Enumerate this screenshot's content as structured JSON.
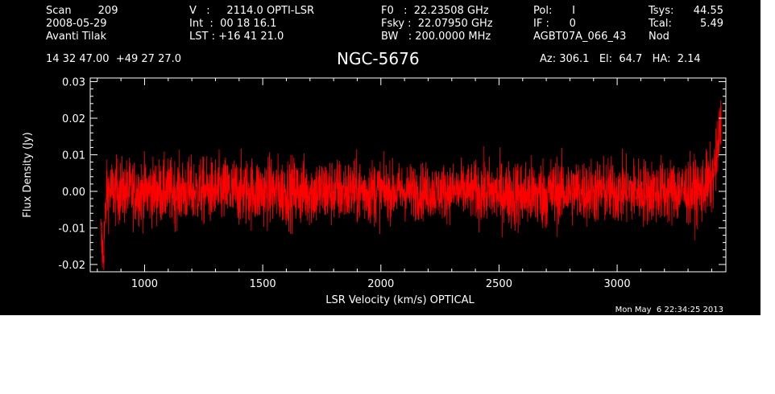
{
  "header": {
    "col1": [
      "Scan        209",
      "2008-05-29",
      "Avanti Tilak"
    ],
    "col2": [
      "V   :     2114.0 OPTI-LSR",
      "Int  :  00 18 16.1",
      "LST : +16 41 21.0"
    ],
    "col3": [
      "F0   :  22.23508 GHz",
      "Fsky :  22.07950 GHz",
      "BW   : 200.0000 MHz"
    ],
    "col4": [
      "Pol:      I",
      "IF :      0",
      "AGBT07A_066_43"
    ],
    "col5": [
      "Tsys:",
      "Tcal:",
      "Nod"
    ],
    "col6": [
      "44.55",
      "5.49",
      ""
    ],
    "coords": "14 32 47.00  +49 27 27.0",
    "object": "NGC-5676",
    "pointing": "Az: 306.1   El:  64.7   HA:  2.14",
    "timestamp": "Mon May  6 22:34:25 2013"
  },
  "colors": {
    "background": "#000000",
    "axes": "#ffffff",
    "trace": "#ff0000"
  },
  "chart_data": {
    "type": "line",
    "title": "NGC-5676",
    "xlabel": "LSR Velocity (km/s) OPTICAL",
    "ylabel": "Flux Density (Jy)",
    "xlim": [
      770,
      3460
    ],
    "ylim": [
      -0.022,
      0.031
    ],
    "xticks": [
      1000,
      1500,
      2000,
      2500,
      3000
    ],
    "xtick_labels": [
      "1000",
      "1500",
      "2000",
      "2500",
      "3000"
    ],
    "yticks": [
      -0.02,
      -0.01,
      0.0,
      0.01,
      0.02,
      0.03
    ],
    "ytick_labels": [
      "-0.02",
      "-0.01",
      "0.00",
      "0.01",
      "0.02",
      "0.03"
    ],
    "grid": false,
    "series": [
      {
        "color": "#ff0000",
        "noise_rms": 0.0045,
        "x": [
          815,
          825,
          840,
          900,
          1000,
          1200,
          1400,
          1600,
          1800,
          2000,
          2200,
          2400,
          2600,
          2800,
          3000,
          3200,
          3350,
          3400,
          3420,
          3430,
          3440
        ],
        "y": [
          -0.012,
          -0.018,
          0.0,
          0.0,
          0.0,
          0.0,
          0.0,
          0.0,
          0.0,
          0.0,
          0.0,
          0.0,
          -0.001,
          0.0,
          0.0,
          0.0,
          0.0,
          0.003,
          0.008,
          0.014,
          0.019
        ]
      }
    ]
  }
}
